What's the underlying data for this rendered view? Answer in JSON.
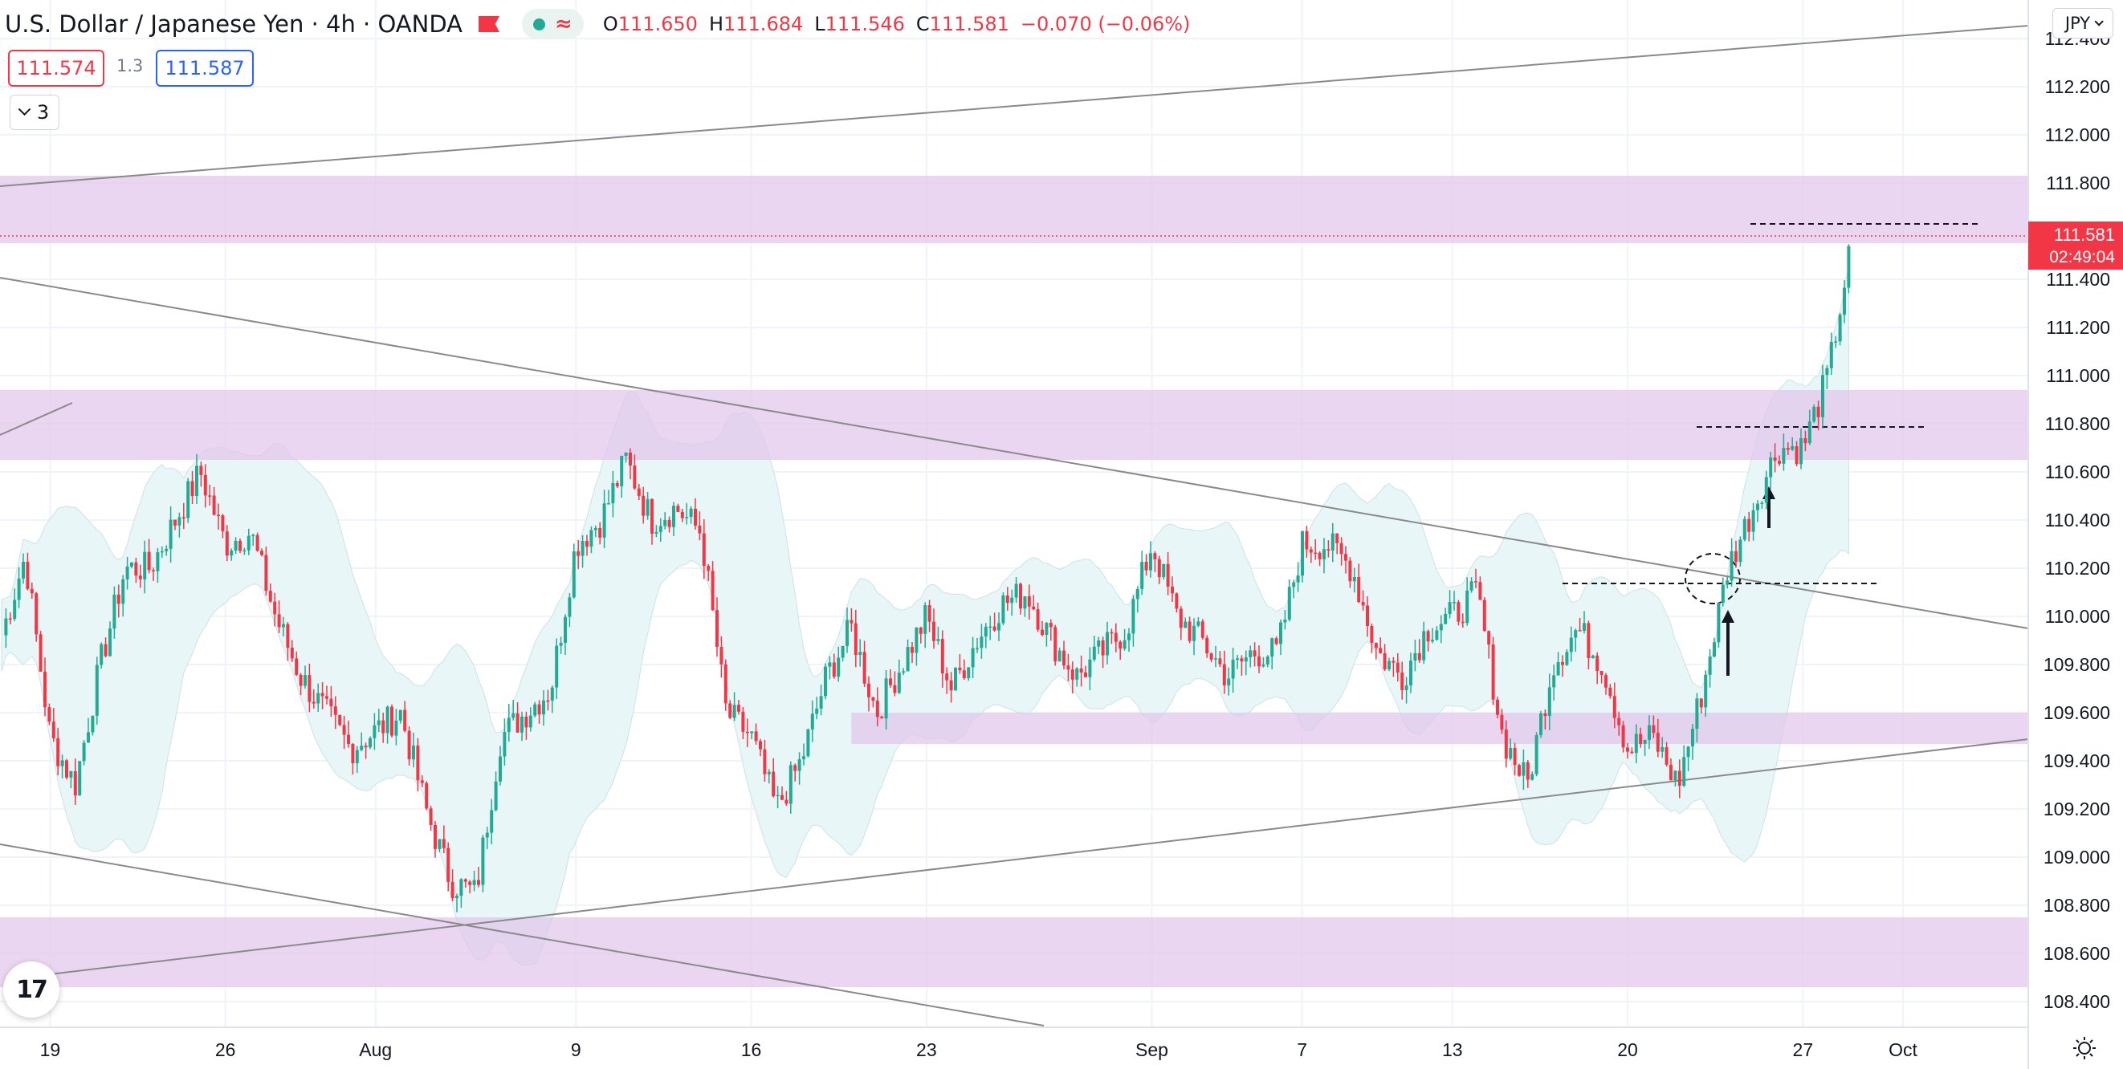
{
  "header": {
    "title": "U.S. Dollar / Japanese Yen · 4h · OANDA",
    "open_label": "O",
    "open": "111.650",
    "high_label": "H",
    "high": "111.684",
    "low_label": "L",
    "low": "111.546",
    "close_label": "C",
    "close": "111.581",
    "change": "−0.070 (−0.06%)"
  },
  "quote": {
    "bid": "111.574",
    "spread": "1.3",
    "ask": "111.587"
  },
  "indicators": {
    "count": "3"
  },
  "currency": {
    "label": "JPY"
  },
  "price_axis": {
    "labels": [
      "112.400",
      "112.200",
      "112.000",
      "111.800",
      "111.400",
      "111.200",
      "111.000",
      "110.800",
      "110.600",
      "110.400",
      "110.200",
      "110.000",
      "109.800",
      "109.600",
      "109.400",
      "109.200",
      "109.000",
      "108.800",
      "108.600",
      "108.400"
    ],
    "last_price": "111.581",
    "countdown": "02:49:04"
  },
  "time_axis": {
    "labels": [
      "19",
      "26",
      "Aug",
      "9",
      "16",
      "23",
      "Sep",
      "7",
      "13",
      "20",
      "27",
      "Oct"
    ]
  },
  "icons": [
    "tradingview-logo-icon",
    "flag-icon",
    "chevron-down-icon",
    "gear-icon"
  ],
  "colors": {
    "bull": "#22ab94",
    "bear": "#f23645",
    "zone": "#e1c4e9",
    "band": "#e8f6f8",
    "accent": "#2962ff"
  },
  "chart_data": {
    "type": "candlestick",
    "symbol": "U.S. Dollar / Japanese Yen",
    "timeframe": "4h",
    "ylim": [
      108.3,
      112.55
    ],
    "x_range": [
      "2021-07-17",
      "2021-10-06"
    ],
    "resistance_support_zones": [
      [
        111.55,
        111.83
      ],
      [
        110.65,
        110.94
      ],
      [
        109.47,
        109.6
      ],
      [
        108.46,
        108.75
      ]
    ],
    "path_keypoints": [
      {
        "date": "2021-07-17",
        "price": 109.9
      },
      {
        "date": "2021-07-18",
        "price": 110.25
      },
      {
        "date": "2021-07-19",
        "price": 109.5
      },
      {
        "date": "2021-07-20",
        "price": 109.3
      },
      {
        "date": "2021-07-21",
        "price": 109.8
      },
      {
        "date": "2021-07-22",
        "price": 110.2
      },
      {
        "date": "2021-07-23",
        "price": 110.2
      },
      {
        "date": "2021-07-25",
        "price": 110.6
      },
      {
        "date": "2021-07-26",
        "price": 110.3
      },
      {
        "date": "2021-07-27",
        "price": 110.35
      },
      {
        "date": "2021-07-28",
        "price": 110.0
      },
      {
        "date": "2021-07-29",
        "price": 109.75
      },
      {
        "date": "2021-07-30",
        "price": 109.6
      },
      {
        "date": "2021-07-31",
        "price": 109.45
      },
      {
        "date": "2021-08-02",
        "price": 109.6
      },
      {
        "date": "2021-08-03",
        "price": 109.2
      },
      {
        "date": "2021-08-04",
        "price": 108.9
      },
      {
        "date": "2021-08-05",
        "price": 108.85
      },
      {
        "date": "2021-08-06",
        "price": 109.5
      },
      {
        "date": "2021-08-08",
        "price": 109.7
      },
      {
        "date": "2021-08-09",
        "price": 110.3
      },
      {
        "date": "2021-08-10",
        "price": 110.4
      },
      {
        "date": "2021-08-11",
        "price": 110.65
      },
      {
        "date": "2021-08-12",
        "price": 110.4
      },
      {
        "date": "2021-08-13",
        "price": 110.45
      },
      {
        "date": "2021-08-14",
        "price": 110.35
      },
      {
        "date": "2021-08-15",
        "price": 109.6
      },
      {
        "date": "2021-08-16",
        "price": 109.5
      },
      {
        "date": "2021-08-17",
        "price": 109.2
      },
      {
        "date": "2021-08-18",
        "price": 109.4
      },
      {
        "date": "2021-08-19",
        "price": 109.75
      },
      {
        "date": "2021-08-20",
        "price": 109.95
      },
      {
        "date": "2021-08-21",
        "price": 109.6
      },
      {
        "date": "2021-08-22",
        "price": 109.8
      },
      {
        "date": "2021-08-23",
        "price": 110.0
      },
      {
        "date": "2021-08-24",
        "price": 109.7
      },
      {
        "date": "2021-08-25",
        "price": 109.9
      },
      {
        "date": "2021-08-26",
        "price": 110.05
      },
      {
        "date": "2021-08-27",
        "price": 110.1
      },
      {
        "date": "2021-08-28",
        "price": 109.9
      },
      {
        "date": "2021-08-29",
        "price": 109.75
      },
      {
        "date": "2021-08-30",
        "price": 109.85
      },
      {
        "date": "2021-08-31",
        "price": 109.95
      },
      {
        "date": "2021-09-01",
        "price": 110.3
      },
      {
        "date": "2021-09-02",
        "price": 110.0
      },
      {
        "date": "2021-09-03",
        "price": 109.9
      },
      {
        "date": "2021-09-04",
        "price": 109.75
      },
      {
        "date": "2021-09-05",
        "price": 109.85
      },
      {
        "date": "2021-09-06",
        "price": 109.85
      },
      {
        "date": "2021-09-07",
        "price": 110.3
      },
      {
        "date": "2021-09-08",
        "price": 110.3
      },
      {
        "date": "2021-09-09",
        "price": 110.2
      },
      {
        "date": "2021-09-10",
        "price": 109.85
      },
      {
        "date": "2021-09-11",
        "price": 109.75
      },
      {
        "date": "2021-09-12",
        "price": 109.95
      },
      {
        "date": "2021-09-13",
        "price": 110.0
      },
      {
        "date": "2021-09-14",
        "price": 110.1
      },
      {
        "date": "2021-09-15",
        "price": 109.5
      },
      {
        "date": "2021-09-16",
        "price": 109.3
      },
      {
        "date": "2021-09-17",
        "price": 109.8
      },
      {
        "date": "2021-09-18",
        "price": 109.95
      },
      {
        "date": "2021-09-19",
        "price": 109.8
      },
      {
        "date": "2021-09-20",
        "price": 109.45
      },
      {
        "date": "2021-09-21",
        "price": 109.5
      },
      {
        "date": "2021-09-22",
        "price": 109.3
      },
      {
        "date": "2021-09-23",
        "price": 109.7
      },
      {
        "date": "2021-09-24",
        "price": 110.2
      },
      {
        "date": "2021-09-25",
        "price": 110.45
      },
      {
        "date": "2021-09-26",
        "price": 110.7
      },
      {
        "date": "2021-09-27",
        "price": 110.7
      },
      {
        "date": "2021-09-28",
        "price": 111.0
      },
      {
        "date": "2021-09-29",
        "price": 111.58
      }
    ]
  }
}
